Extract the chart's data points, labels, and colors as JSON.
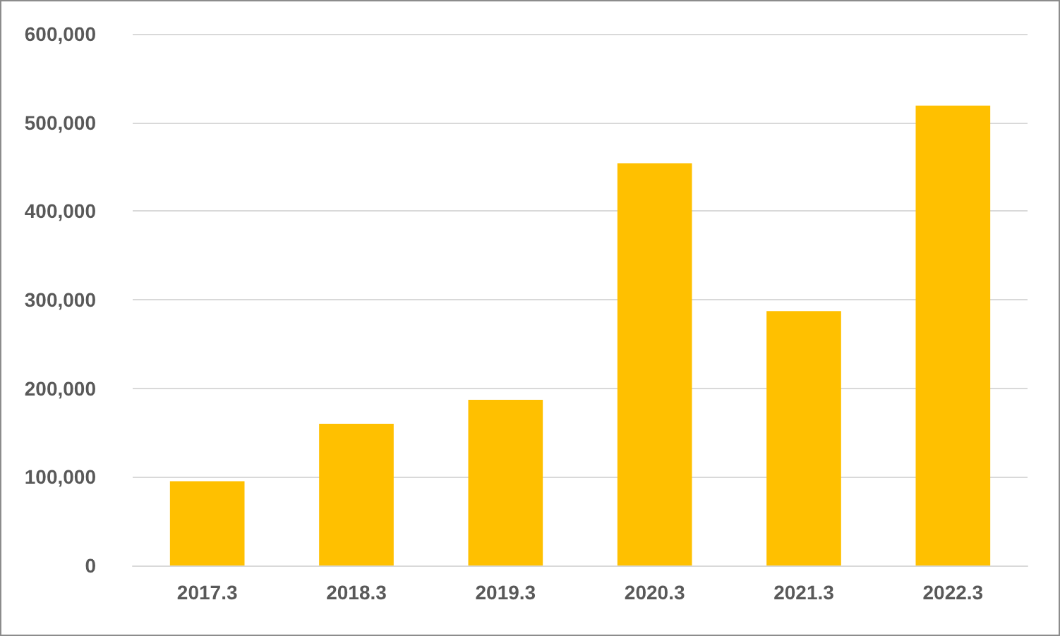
{
  "chart_data": {
    "type": "bar",
    "categories": [
      "2017.3",
      "2018.3",
      "2019.3",
      "2020.3",
      "2021.3",
      "2022.3"
    ],
    "values": [
      95000,
      160000,
      187000,
      454000,
      287000,
      519000
    ],
    "color": "#ffc000",
    "ylim": [
      0,
      600000
    ],
    "yticks": [
      0,
      {
        "value": 100000,
        "label": "100,000"
      },
      {
        "value": 200000,
        "label": "200,000"
      },
      {
        "value": 300000,
        "label": "300,000"
      },
      {
        "value": 400000,
        "label": "400,000"
      },
      {
        "value": 500000,
        "label": "500,000"
      },
      {
        "value": 600000,
        "label": "600,000"
      }
    ],
    "grid": "y"
  }
}
